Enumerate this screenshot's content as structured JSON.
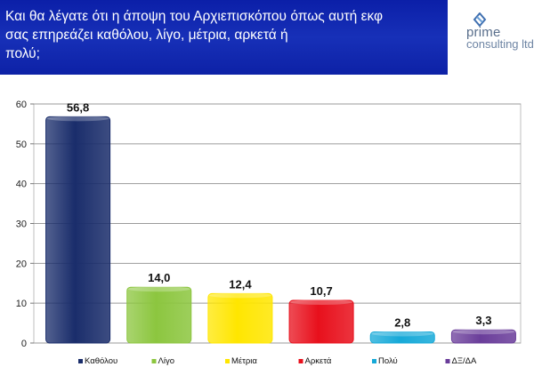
{
  "header": {
    "lines": [
      "Και θα λέγατε ότι η άποψη του  Αρχιεπισκόπου όπως αυτή εκφ",
      "σας επηρεάζει καθόλου, λίγο, μέτρια, αρκετά ή",
      "πολύ;"
    ]
  },
  "logo": {
    "brand": "prime",
    "sub": "consulting ltd"
  },
  "colors": {
    "header_bg": "#1228b0"
  },
  "chart_data": {
    "type": "bar",
    "categories": [
      "Καθόλου",
      "Λίγο",
      "Μέτρια",
      "Αρκετά",
      "Πολύ",
      "ΔΞ/ΔΑ"
    ],
    "values": [
      56.8,
      14.0,
      12.4,
      10.7,
      2.8,
      3.3
    ],
    "labels": [
      "56,8",
      "14,0",
      "12,4",
      "10,7",
      "2,8",
      "3,3"
    ],
    "colors": [
      "#1a2d6b",
      "#8cc63f",
      "#ffe600",
      "#e8101c",
      "#16a9d8",
      "#6a3d9a"
    ],
    "ylim": [
      0,
      60
    ],
    "yticks": [
      0,
      10,
      20,
      30,
      40,
      50,
      60
    ],
    "grid": true,
    "legend": "bottom"
  }
}
